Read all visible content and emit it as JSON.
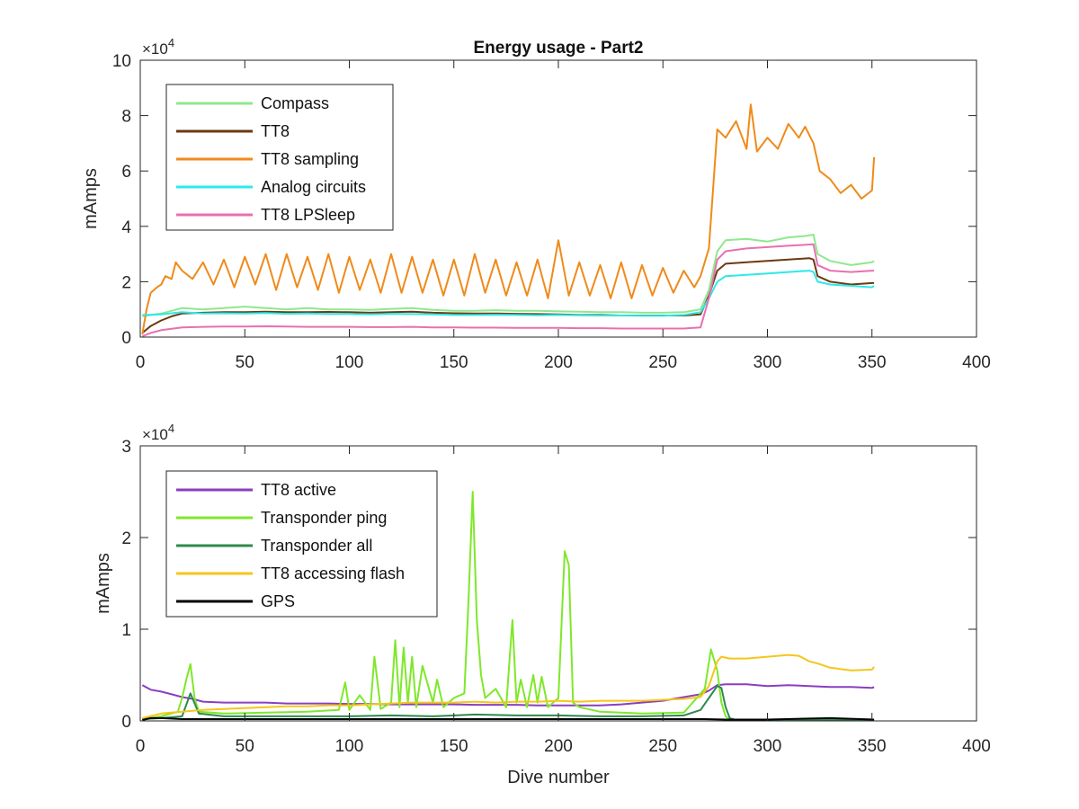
{
  "chart_data": [
    {
      "type": "line",
      "title": "Energy usage - Part2",
      "xlabel": "",
      "ylabel": "mAmps",
      "xlim": [
        0,
        400
      ],
      "ylim": [
        0,
        100000
      ],
      "y_exponent_label": "× 10^4",
      "x_ticks": [
        0,
        50,
        100,
        150,
        200,
        250,
        300,
        350,
        400
      ],
      "x_tick_labels": [
        "0",
        "50",
        "100",
        "150",
        "200",
        "250",
        "300",
        "350",
        "400"
      ],
      "y_ticks": [
        0,
        20000,
        40000,
        60000,
        80000,
        100000
      ],
      "y_tick_labels": [
        "0",
        "2",
        "4",
        "6",
        "8",
        "10"
      ],
      "grid": false,
      "legend_position": "top-left",
      "series": [
        {
          "name": "Compass",
          "color": "#8ee88e",
          "x": [
            1,
            10,
            20,
            30,
            40,
            50,
            60,
            70,
            80,
            90,
            100,
            110,
            120,
            130,
            140,
            150,
            160,
            170,
            180,
            190,
            200,
            210,
            220,
            230,
            240,
            250,
            260,
            268,
            272,
            276,
            280,
            290,
            300,
            310,
            318,
            322,
            324,
            330,
            340,
            350,
            351
          ],
          "y": [
            7500,
            8500,
            10500,
            10000,
            10500,
            11000,
            10500,
            10000,
            10500,
            10000,
            10000,
            9800,
            10200,
            10500,
            9800,
            9500,
            9500,
            9700,
            9500,
            9500,
            9300,
            9200,
            9000,
            9000,
            8800,
            8800,
            9000,
            10000,
            17000,
            31000,
            35000,
            35500,
            34500,
            36000,
            36500,
            37000,
            30000,
            27500,
            26000,
            27000,
            27500
          ]
        },
        {
          "name": "TT8",
          "color": "#6b3a12",
          "x": [
            1,
            5,
            10,
            15,
            20,
            30,
            40,
            50,
            60,
            70,
            80,
            90,
            100,
            110,
            120,
            130,
            140,
            150,
            160,
            170,
            180,
            190,
            200,
            210,
            220,
            230,
            240,
            250,
            260,
            268,
            272,
            276,
            280,
            290,
            300,
            310,
            320,
            322,
            324,
            330,
            340,
            350,
            351
          ],
          "y": [
            1500,
            4000,
            6000,
            7500,
            8500,
            8800,
            9000,
            9000,
            9200,
            9000,
            9000,
            9100,
            9000,
            8800,
            9000,
            9200,
            8800,
            8600,
            8500,
            8500,
            8400,
            8300,
            8200,
            8000,
            8000,
            7800,
            7800,
            7800,
            7800,
            8200,
            15000,
            24000,
            26500,
            27000,
            27500,
            28000,
            28500,
            28000,
            22000,
            20000,
            19000,
            19500,
            19500
          ]
        },
        {
          "name": "TT8 sampling",
          "color": "#f08a1a",
          "x": [
            1,
            3,
            5,
            8,
            10,
            12,
            15,
            17,
            20,
            25,
            30,
            35,
            40,
            45,
            50,
            55,
            60,
            65,
            70,
            75,
            80,
            85,
            90,
            95,
            100,
            105,
            110,
            115,
            120,
            125,
            130,
            135,
            140,
            145,
            150,
            155,
            160,
            165,
            170,
            175,
            180,
            185,
            190,
            195,
            200,
            205,
            210,
            215,
            220,
            225,
            230,
            235,
            240,
            245,
            250,
            255,
            260,
            265,
            268,
            272,
            276,
            280,
            285,
            290,
            292,
            295,
            300,
            305,
            310,
            315,
            318,
            322,
            325,
            330,
            335,
            340,
            345,
            350,
            351
          ],
          "y": [
            1000,
            10000,
            16000,
            18000,
            19000,
            22000,
            21000,
            27000,
            24000,
            21000,
            27000,
            19000,
            28000,
            18000,
            29000,
            19000,
            30000,
            17000,
            30000,
            18000,
            29000,
            17000,
            30000,
            16000,
            29000,
            17000,
            28000,
            16000,
            30000,
            16000,
            29000,
            16000,
            28000,
            15000,
            28000,
            15000,
            30000,
            16000,
            28000,
            15000,
            27000,
            15000,
            28000,
            14000,
            35000,
            15000,
            27000,
            15000,
            26000,
            14000,
            27000,
            14000,
            26000,
            15000,
            25000,
            16000,
            24000,
            18000,
            22000,
            32000,
            75000,
            72000,
            78000,
            68000,
            84000,
            67000,
            72000,
            68000,
            77000,
            72000,
            76000,
            70000,
            60000,
            57000,
            52000,
            55000,
            50000,
            53000,
            65000
          ]
        },
        {
          "name": "Analog circuits",
          "color": "#2ee8e8",
          "x": [
            1,
            10,
            20,
            30,
            40,
            50,
            60,
            70,
            80,
            90,
            100,
            110,
            120,
            130,
            140,
            150,
            160,
            170,
            180,
            190,
            200,
            210,
            220,
            230,
            240,
            250,
            260,
            268,
            272,
            276,
            280,
            290,
            300,
            310,
            320,
            322,
            324,
            330,
            340,
            350,
            351
          ],
          "y": [
            8000,
            8200,
            9000,
            8500,
            8600,
            8500,
            8700,
            8400,
            8500,
            8300,
            8300,
            8200,
            8400,
            8300,
            8200,
            8000,
            8000,
            8100,
            8000,
            7900,
            8000,
            7900,
            7800,
            7800,
            7700,
            7700,
            8000,
            9000,
            14000,
            20000,
            22000,
            22500,
            23000,
            23500,
            24000,
            23500,
            20000,
            19000,
            18500,
            18000,
            18500
          ]
        },
        {
          "name": "TT8 LPSleep",
          "color": "#e870b0",
          "x": [
            1,
            5,
            10,
            15,
            20,
            30,
            40,
            50,
            60,
            70,
            80,
            90,
            100,
            110,
            120,
            130,
            140,
            150,
            160,
            170,
            180,
            190,
            200,
            210,
            220,
            230,
            240,
            250,
            260,
            268,
            272,
            276,
            280,
            290,
            300,
            310,
            322,
            324,
            330,
            340,
            350,
            351
          ],
          "y": [
            300,
            1500,
            2500,
            3000,
            3500,
            3700,
            3800,
            3800,
            3900,
            3800,
            3700,
            3700,
            3700,
            3600,
            3600,
            3700,
            3500,
            3500,
            3400,
            3400,
            3300,
            3300,
            3300,
            3200,
            3200,
            3100,
            3100,
            3100,
            3100,
            3500,
            14000,
            28000,
            31000,
            32000,
            32500,
            33000,
            33500,
            26000,
            24000,
            23500,
            24000,
            24000
          ]
        }
      ]
    },
    {
      "type": "line",
      "title": "",
      "xlabel": "Dive number",
      "ylabel": "mAmps",
      "xlim": [
        0,
        400
      ],
      "ylim": [
        0,
        30000
      ],
      "y_exponent_label": "× 10^4",
      "x_ticks": [
        0,
        50,
        100,
        150,
        200,
        250,
        300,
        350,
        400
      ],
      "x_tick_labels": [
        "0",
        "50",
        "100",
        "150",
        "200",
        "250",
        "300",
        "350",
        "400"
      ],
      "y_ticks": [
        0,
        10000,
        20000,
        30000
      ],
      "y_tick_labels": [
        "0",
        "1",
        "2",
        "3"
      ],
      "grid": false,
      "legend_position": "top-left",
      "series": [
        {
          "name": "TT8 active",
          "color": "#8a3ec0",
          "x": [
            1,
            5,
            10,
            15,
            20,
            25,
            30,
            40,
            50,
            60,
            70,
            80,
            90,
            100,
            110,
            120,
            130,
            140,
            150,
            160,
            170,
            180,
            190,
            200,
            210,
            220,
            230,
            240,
            250,
            260,
            268,
            272,
            276,
            280,
            290,
            300,
            310,
            320,
            330,
            340,
            350,
            351
          ],
          "y": [
            3900,
            3400,
            3200,
            2900,
            2600,
            2400,
            2100,
            2000,
            2000,
            2000,
            1900,
            1900,
            1900,
            1850,
            1850,
            1800,
            1800,
            1800,
            1800,
            1750,
            1750,
            1750,
            1700,
            1700,
            1700,
            1700,
            1800,
            2000,
            2200,
            2600,
            2900,
            3300,
            3900,
            4000,
            4000,
            3800,
            3900,
            3800,
            3700,
            3700,
            3600,
            3700
          ]
        },
        {
          "name": "Transponder ping",
          "color": "#7ee82a",
          "x": [
            1,
            10,
            18,
            20,
            22,
            24,
            26,
            28,
            40,
            60,
            80,
            95,
            98,
            100,
            105,
            110,
            112,
            115,
            120,
            122,
            124,
            126,
            128,
            130,
            132,
            135,
            140,
            142,
            145,
            150,
            155,
            157,
            159,
            161,
            163,
            165,
            170,
            175,
            178,
            180,
            182,
            185,
            188,
            190,
            192,
            195,
            200,
            203,
            205,
            207,
            210,
            220,
            240,
            260,
            270,
            273,
            276,
            278,
            280,
            282,
            285,
            290,
            351
          ],
          "y": [
            200,
            500,
            1000,
            2500,
            4500,
            6200,
            2500,
            1000,
            800,
            900,
            1000,
            1200,
            4200,
            1200,
            2800,
            1200,
            7000,
            1300,
            2000,
            8800,
            1500,
            8000,
            2000,
            7000,
            1500,
            6000,
            2000,
            4500,
            1500,
            2500,
            3000,
            13000,
            25000,
            11000,
            5000,
            2500,
            3500,
            1500,
            11000,
            2000,
            4500,
            1500,
            5000,
            2000,
            4800,
            1500,
            2500,
            18500,
            17000,
            2000,
            1500,
            1000,
            800,
            900,
            3500,
            7800,
            5500,
            2000,
            500,
            150,
            100,
            100,
            100
          ]
        },
        {
          "name": "Transponder all",
          "color": "#2e8a4e",
          "x": [
            1,
            10,
            20,
            24,
            28,
            40,
            60,
            80,
            100,
            120,
            140,
            160,
            180,
            200,
            220,
            240,
            260,
            268,
            272,
            276,
            278,
            280,
            282,
            285,
            351
          ],
          "y": [
            200,
            300,
            500,
            3000,
            800,
            500,
            500,
            500,
            500,
            600,
            500,
            700,
            600,
            600,
            500,
            500,
            600,
            1200,
            2500,
            3800,
            3600,
            1500,
            300,
            100,
            100
          ]
        },
        {
          "name": "TT8 accessing flash",
          "color": "#f5c61a",
          "x": [
            1,
            10,
            20,
            30,
            40,
            50,
            60,
            70,
            80,
            90,
            100,
            110,
            120,
            130,
            140,
            150,
            160,
            170,
            180,
            190,
            200,
            210,
            220,
            230,
            240,
            250,
            260,
            268,
            272,
            276,
            278,
            282,
            290,
            300,
            310,
            315,
            320,
            325,
            330,
            340,
            350,
            351
          ],
          "y": [
            300,
            800,
            1000,
            1200,
            1300,
            1400,
            1500,
            1600,
            1600,
            1700,
            1700,
            1800,
            1900,
            2000,
            2000,
            2000,
            2100,
            2000,
            2100,
            2100,
            2200,
            2100,
            2200,
            2200,
            2200,
            2300,
            2400,
            2600,
            3800,
            6500,
            7000,
            6800,
            6800,
            7000,
            7200,
            7100,
            6500,
            6200,
            5800,
            5500,
            5600,
            5900
          ]
        },
        {
          "name": "GPS",
          "color": "#000000",
          "x": [
            1,
            5,
            10,
            20,
            30,
            40,
            60,
            80,
            100,
            120,
            140,
            160,
            180,
            200,
            220,
            240,
            260,
            270,
            280,
            300,
            330,
            351
          ],
          "y": [
            100,
            300,
            300,
            200,
            200,
            200,
            200,
            200,
            200,
            200,
            200,
            200,
            200,
            200,
            200,
            200,
            200,
            200,
            150,
            150,
            300,
            150
          ]
        }
      ]
    }
  ]
}
